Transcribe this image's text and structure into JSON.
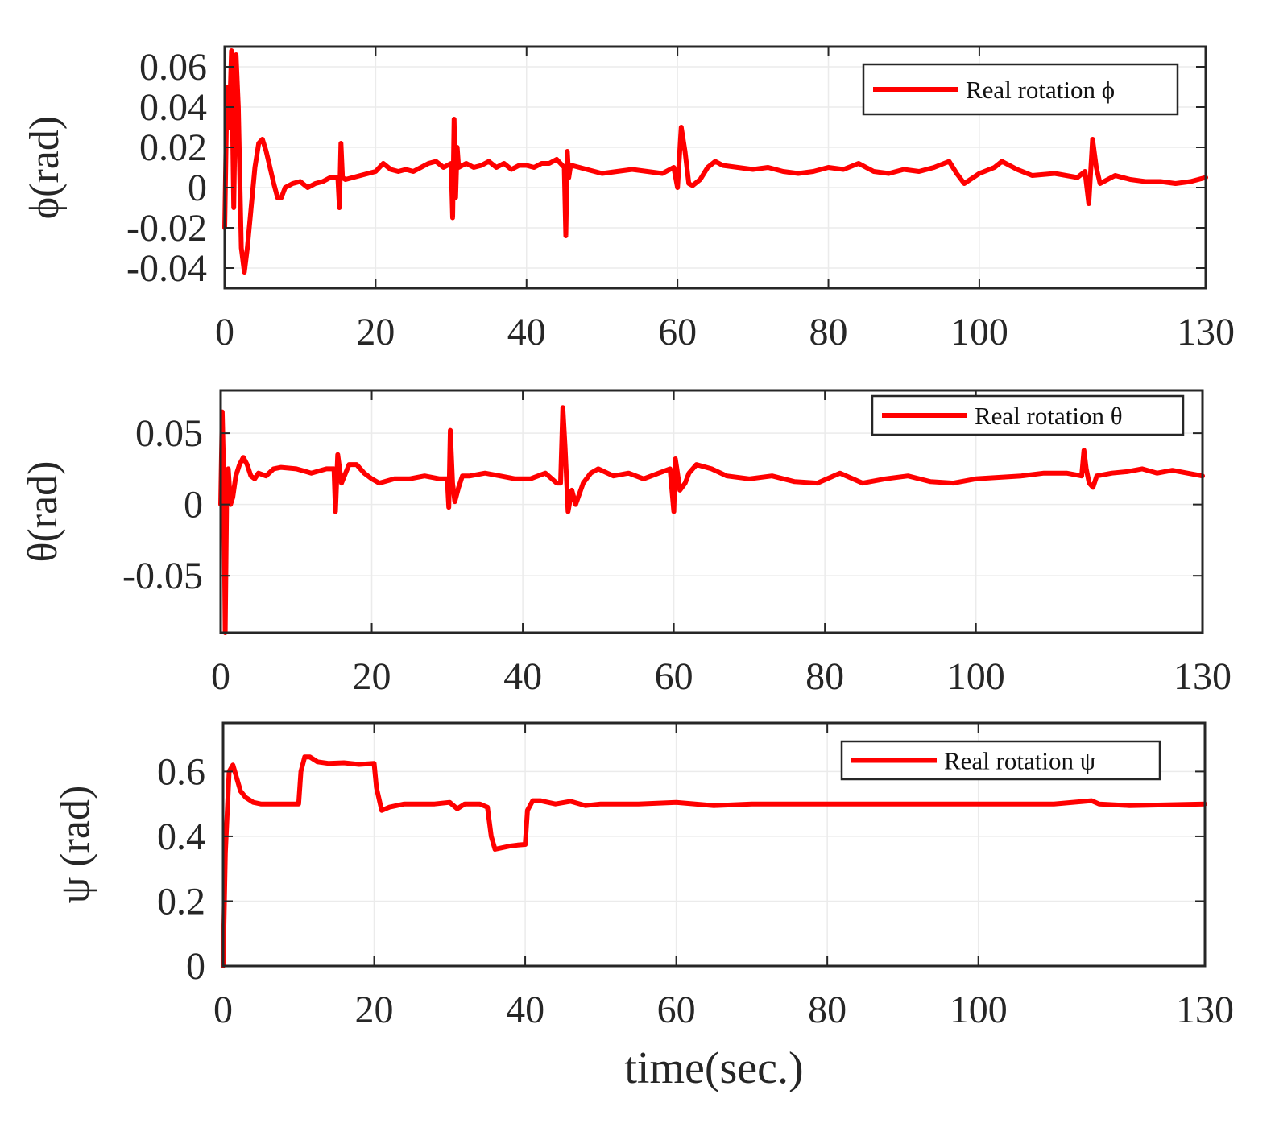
{
  "colors": {
    "line": "#ff0000",
    "axis": "#262626",
    "grid": "#ebebeb",
    "background": "#ffffff"
  },
  "chart_data": [
    {
      "type": "line",
      "ylabel": "ϕ(rad)",
      "xlabel": "",
      "xlim": [
        0,
        130
      ],
      "ylim": [
        -0.05,
        0.07
      ],
      "xticks": [
        0,
        20,
        40,
        60,
        80,
        100,
        130
      ],
      "xtick_labels": [
        "0",
        "20",
        "40",
        "60",
        "80",
        "100",
        "130"
      ],
      "yticks": [
        -0.04,
        -0.02,
        0,
        0.02,
        0.04,
        0.06
      ],
      "ytick_labels": [
        "-0.04",
        "-0.02",
        "0",
        "0.02",
        "0.04",
        "0.06"
      ],
      "grid": true,
      "legend": {
        "label": "Real rotation ϕ",
        "position": "top-right"
      },
      "series": [
        {
          "name": "Real rotation ϕ",
          "x": [
            0,
            0.3,
            0.6,
            0.9,
            1.2,
            1.5,
            1.8,
            2.2,
            2.6,
            3.0,
            3.5,
            4.0,
            4.5,
            5.0,
            5.5,
            6.0,
            6.5,
            7.0,
            7.5,
            8.0,
            9.0,
            10.0,
            11.0,
            12.0,
            13.0,
            14.0,
            15.0,
            15.2,
            15.4,
            15.6,
            16.0,
            17.0,
            18.0,
            19.0,
            20.0,
            21.0,
            22.0,
            23.0,
            24.0,
            25.0,
            26.0,
            27.0,
            28.0,
            29.0,
            30.0,
            30.2,
            30.4,
            30.6,
            30.8,
            31.0,
            31.5,
            32.0,
            33.0,
            34.0,
            35.0,
            36.0,
            37.0,
            38.0,
            39.0,
            40.0,
            41.0,
            42.0,
            43.0,
            44.0,
            45.0,
            45.2,
            45.4,
            45.6,
            45.8,
            46.0,
            47.0,
            48.0,
            50.0,
            52.0,
            54.0,
            56.0,
            58.0,
            59.5,
            60.0,
            60.5,
            61.0,
            61.5,
            62.0,
            63.0,
            64.0,
            65.0,
            66.0,
            68.0,
            70.0,
            72.0,
            74.0,
            76.0,
            78.0,
            80.0,
            82.0,
            84.0,
            86.0,
            88.0,
            90.0,
            92.0,
            94.0,
            96.0,
            97.0,
            98.0,
            100.0,
            102.0,
            103.0,
            105.0,
            107.0,
            110.0,
            113.0,
            114.0,
            114.5,
            115.0,
            115.5,
            116.0,
            117.0,
            118.0,
            120.0,
            122.0,
            124.0,
            126.0,
            128.0,
            130.0
          ],
          "y": [
            -0.02,
            0.05,
            0.03,
            0.068,
            -0.01,
            0.066,
            0.04,
            -0.03,
            -0.042,
            -0.03,
            -0.01,
            0.01,
            0.022,
            0.024,
            0.018,
            0.01,
            0.002,
            -0.005,
            -0.005,
            0.0,
            0.002,
            0.003,
            0.0,
            0.002,
            0.003,
            0.005,
            0.005,
            -0.01,
            0.022,
            0.005,
            0.004,
            0.005,
            0.006,
            0.007,
            0.008,
            0.012,
            0.009,
            0.008,
            0.009,
            0.008,
            0.01,
            0.012,
            0.013,
            0.01,
            0.012,
            -0.015,
            0.034,
            -0.005,
            0.02,
            0.01,
            0.011,
            0.012,
            0.01,
            0.011,
            0.013,
            0.01,
            0.012,
            0.009,
            0.011,
            0.011,
            0.01,
            0.012,
            0.012,
            0.014,
            0.01,
            -0.024,
            0.018,
            0.005,
            0.01,
            0.011,
            0.01,
            0.009,
            0.007,
            0.008,
            0.009,
            0.008,
            0.007,
            0.01,
            0.0,
            0.03,
            0.018,
            0.002,
            0.001,
            0.004,
            0.01,
            0.013,
            0.011,
            0.01,
            0.009,
            0.01,
            0.008,
            0.007,
            0.008,
            0.01,
            0.009,
            0.012,
            0.008,
            0.007,
            0.009,
            0.008,
            0.01,
            0.013,
            0.007,
            0.002,
            0.007,
            0.01,
            0.013,
            0.009,
            0.006,
            0.007,
            0.005,
            0.008,
            -0.008,
            0.024,
            0.01,
            0.002,
            0.004,
            0.006,
            0.004,
            0.003,
            0.003,
            0.002,
            0.003,
            0.005
          ]
        }
      ]
    },
    {
      "type": "line",
      "ylabel": "θ(rad)",
      "xlabel": "",
      "xlim": [
        0,
        130
      ],
      "ylim": [
        -0.09,
        0.08
      ],
      "xticks": [
        0,
        20,
        40,
        60,
        80,
        100,
        130
      ],
      "xtick_labels": [
        "0",
        "20",
        "40",
        "60",
        "80",
        "100",
        "130"
      ],
      "yticks": [
        -0.05,
        0,
        0.05
      ],
      "ytick_labels": [
        "-0.05",
        "0",
        "0.05"
      ],
      "grid": true,
      "legend": {
        "label": "Real rotation θ",
        "position": "top-right"
      },
      "series": [
        {
          "name": "Real rotation θ",
          "x": [
            0,
            0.2,
            0.4,
            0.6,
            0.8,
            1.0,
            1.3,
            1.6,
            2.0,
            2.5,
            3.0,
            3.5,
            4.0,
            4.5,
            5.0,
            6.0,
            7.0,
            8.0,
            10.0,
            12.0,
            14.0,
            15.0,
            15.2,
            15.5,
            16.0,
            17.0,
            18.0,
            19.0,
            20.0,
            21.0,
            23.0,
            25.0,
            27.0,
            29.0,
            30.0,
            30.2,
            30.4,
            30.7,
            31.0,
            31.5,
            32.0,
            33.0,
            35.0,
            37.0,
            39.0,
            41.0,
            43.0,
            44.5,
            45.0,
            45.3,
            45.6,
            46.0,
            46.5,
            47.0,
            48.0,
            49.0,
            50.0,
            52.0,
            54.0,
            56.0,
            58.0,
            59.5,
            60.0,
            60.2,
            60.4,
            60.8,
            61.5,
            62.0,
            63.0,
            65.0,
            67.0,
            70.0,
            73.0,
            76.0,
            79.0,
            82.0,
            85.0,
            88.0,
            91.0,
            94.0,
            97.0,
            100.0,
            103.0,
            106.0,
            109.0,
            112.0,
            114.0,
            114.3,
            114.6,
            115.0,
            115.5,
            116.0,
            118.0,
            120.0,
            122.0,
            124.0,
            126.0,
            128.0,
            130.0
          ],
          "y": [
            0.0,
            0.065,
            0.02,
            -0.09,
            0.01,
            0.025,
            0.0,
            0.005,
            0.02,
            0.028,
            0.033,
            0.028,
            0.02,
            0.018,
            0.022,
            0.02,
            0.025,
            0.026,
            0.025,
            0.022,
            0.025,
            0.025,
            -0.005,
            0.035,
            0.015,
            0.028,
            0.028,
            0.022,
            0.018,
            0.015,
            0.018,
            0.018,
            0.02,
            0.018,
            0.018,
            -0.002,
            0.052,
            0.015,
            0.002,
            0.012,
            0.02,
            0.02,
            0.022,
            0.02,
            0.018,
            0.018,
            0.022,
            0.015,
            0.015,
            0.068,
            0.04,
            -0.005,
            0.01,
            0.0,
            0.015,
            0.022,
            0.025,
            0.02,
            0.022,
            0.018,
            0.022,
            0.025,
            -0.005,
            0.032,
            0.025,
            0.01,
            0.015,
            0.022,
            0.028,
            0.025,
            0.02,
            0.018,
            0.02,
            0.016,
            0.015,
            0.022,
            0.015,
            0.018,
            0.02,
            0.016,
            0.015,
            0.018,
            0.019,
            0.02,
            0.022,
            0.022,
            0.02,
            0.038,
            0.025,
            0.015,
            0.012,
            0.02,
            0.022,
            0.023,
            0.025,
            0.022,
            0.024,
            0.022,
            0.02
          ]
        }
      ]
    },
    {
      "type": "line",
      "ylabel": "ψ (rad)",
      "xlabel": "time(sec.)",
      "xlim": [
        0,
        130
      ],
      "ylim": [
        0,
        0.75
      ],
      "xticks": [
        0,
        20,
        40,
        60,
        80,
        100,
        130
      ],
      "xtick_labels": [
        "0",
        "20",
        "40",
        "60",
        "80",
        "100",
        "130"
      ],
      "yticks": [
        0,
        0.2,
        0.4,
        0.6
      ],
      "ytick_labels": [
        "0",
        "0.2",
        "0.4",
        "0.6"
      ],
      "grid": true,
      "legend": {
        "label": "Real rotation ψ",
        "position": "top-right"
      },
      "series": [
        {
          "name": "Real rotation ψ",
          "x": [
            0,
            0.3,
            0.8,
            1.3,
            1.8,
            2.3,
            3.0,
            4.0,
            5.0,
            6.0,
            8.0,
            10.0,
            10.3,
            10.8,
            11.5,
            12.5,
            14.0,
            16.0,
            18.0,
            20.0,
            20.3,
            21.0,
            22.0,
            24.0,
            26.0,
            28.0,
            30.0,
            31.0,
            32.0,
            34.0,
            35.0,
            35.5,
            36.0,
            37.0,
            38.0,
            39.0,
            40.0,
            40.3,
            41.0,
            42.0,
            44.0,
            46.0,
            48.0,
            50.0,
            55.0,
            60.0,
            65.0,
            70.0,
            80.0,
            90.0,
            100.0,
            110.0,
            115.0,
            116.0,
            120.0,
            130.0
          ],
          "y": [
            0.0,
            0.35,
            0.6,
            0.62,
            0.58,
            0.54,
            0.52,
            0.505,
            0.5,
            0.5,
            0.5,
            0.5,
            0.6,
            0.645,
            0.645,
            0.63,
            0.625,
            0.627,
            0.622,
            0.625,
            0.55,
            0.48,
            0.49,
            0.5,
            0.5,
            0.5,
            0.505,
            0.485,
            0.5,
            0.5,
            0.49,
            0.4,
            0.36,
            0.365,
            0.37,
            0.373,
            0.375,
            0.48,
            0.51,
            0.51,
            0.5,
            0.508,
            0.495,
            0.5,
            0.5,
            0.505,
            0.495,
            0.5,
            0.5,
            0.5,
            0.5,
            0.5,
            0.51,
            0.5,
            0.495,
            0.5
          ]
        }
      ]
    }
  ]
}
